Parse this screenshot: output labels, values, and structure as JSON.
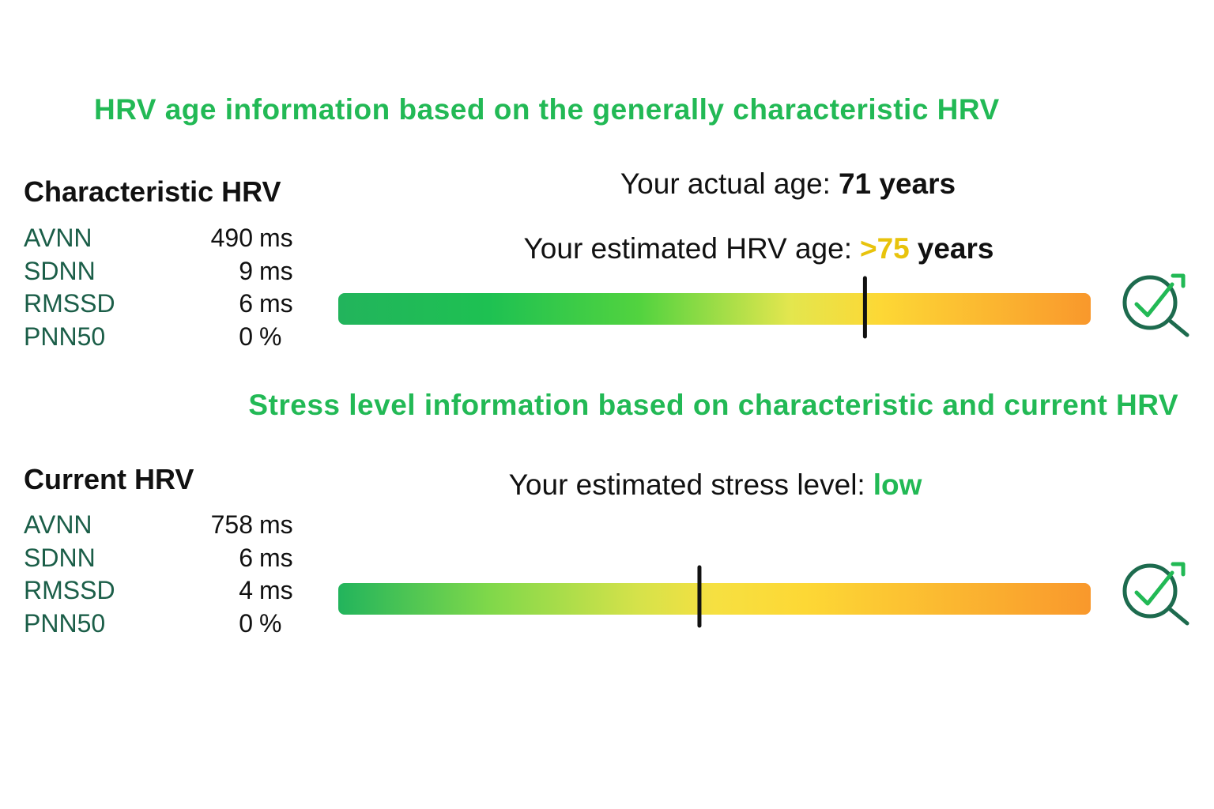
{
  "header": {
    "title": "HRV age information based on the generally characteristic HRV"
  },
  "characteristic": {
    "heading": "Characteristic HRV",
    "metrics": [
      {
        "name": "AVNN",
        "value": 490,
        "unit": "ms"
      },
      {
        "name": "SDNN",
        "value": 9,
        "unit": "ms"
      },
      {
        "name": "RMSSD",
        "value": 6,
        "unit": "ms"
      },
      {
        "name": "PNN50",
        "value": 0,
        "unit": "%"
      }
    ],
    "actual_age": {
      "label": "Your actual age:",
      "value": "71 years"
    },
    "hrv_age": {
      "label": "Your estimated HRV age:",
      "value": ">75",
      "unit": "years"
    },
    "gauge_value": 70
  },
  "stress": {
    "title": "Stress level information based on characteristic and current HRV",
    "heading": "Current HRV",
    "metrics": [
      {
        "name": "AVNN",
        "value": 758,
        "unit": "ms"
      },
      {
        "name": "SDNN",
        "value": 6,
        "unit": "ms"
      },
      {
        "name": "RMSSD",
        "value": 4,
        "unit": "ms"
      },
      {
        "name": "PNN50",
        "value": 0,
        "unit": "%"
      }
    ],
    "level": {
      "label": "Your estimated stress level:",
      "value": "low"
    },
    "gauge_value": 48
  }
}
